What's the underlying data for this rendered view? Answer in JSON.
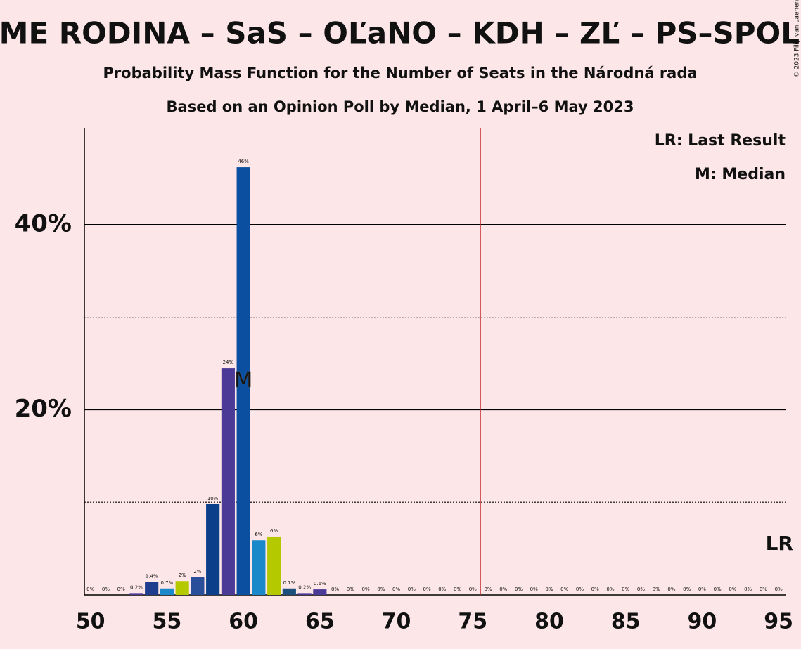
{
  "chart_data": {
    "type": "bar",
    "title": "SME RODINA – SaS – OĽaNO – KDH – ZĽ – PS–SPOLU",
    "subtitle": "Probability Mass Function for the Number of Seats in the Národná rada",
    "subtitle2": "Based on an Opinion Poll by Median, 1 April–6 May 2023",
    "copyright": "© 2023 Filip van Laenen",
    "legend": [
      "LR: Last Result",
      "M: Median"
    ],
    "median_marker": "M",
    "median": 60,
    "last_result_marker": "LR",
    "majority_line": 75.5,
    "x": [
      50,
      51,
      52,
      53,
      54,
      55,
      56,
      57,
      58,
      59,
      60,
      61,
      62,
      63,
      64,
      65,
      66,
      67,
      68,
      69,
      70,
      71,
      72,
      73,
      74,
      75,
      76,
      77,
      78,
      79,
      80,
      81,
      82,
      83,
      84,
      85,
      86,
      87,
      88,
      89,
      90,
      91,
      92,
      93,
      94,
      95
    ],
    "values": [
      0,
      0,
      0,
      0.2,
      1.4,
      0.7,
      1.5,
      1.9,
      9.8,
      24.5,
      46.2,
      5.9,
      6.3,
      0.7,
      0.2,
      0.6,
      0,
      0,
      0,
      0,
      0,
      0,
      0,
      0,
      0,
      0,
      0,
      0,
      0,
      0,
      0,
      0,
      0,
      0,
      0,
      0,
      0,
      0,
      0,
      0,
      0,
      0,
      0,
      0,
      0,
      0
    ],
    "value_labels": [
      "0%",
      "0%",
      "0%",
      "0.2%",
      "1.4%",
      "0.7%",
      "2%",
      "2%",
      "10%",
      "24%",
      "46%",
      "6%",
      "6%",
      "0.7%",
      "0.2%",
      "0.6%",
      "0%",
      "0%",
      "0%",
      "0%",
      "0%",
      "0%",
      "0%",
      "0%",
      "0%",
      "0%",
      "0%",
      "0%",
      "0%",
      "0%",
      "0%",
      "0%",
      "0%",
      "0%",
      "0%",
      "0%",
      "0%",
      "0%",
      "0%",
      "0%",
      "0%",
      "0%",
      "0%",
      "0%",
      "0%",
      "0%"
    ],
    "colors": [
      "#1f3d8f",
      "#1f3d8f",
      "#1f3d8f",
      "#4b3a96",
      "#1f3d8f",
      "#1a88c9",
      "#b5c900",
      "#2a4f9a",
      "#0b3f8a",
      "#4b3a96",
      "#0a4fa0",
      "#1a88c9",
      "#b5c900",
      "#1d4f7d",
      "#4b3a96",
      "#4b3a96",
      "#1f3d8f",
      "#1f3d8f",
      "#1f3d8f",
      "#1f3d8f",
      "#1f3d8f",
      "#1f3d8f",
      "#1f3d8f",
      "#1f3d8f",
      "#1f3d8f",
      "#1f3d8f",
      "#1f3d8f",
      "#1f3d8f",
      "#1f3d8f",
      "#1f3d8f",
      "#1f3d8f",
      "#1f3d8f",
      "#1f3d8f",
      "#1f3d8f",
      "#1f3d8f",
      "#1f3d8f",
      "#1f3d8f",
      "#1f3d8f",
      "#1f3d8f",
      "#1f3d8f",
      "#1f3d8f",
      "#1f3d8f",
      "#1f3d8f",
      "#1f3d8f",
      "#1f3d8f",
      "#1f3d8f"
    ],
    "xlim": [
      49.6,
      95.5
    ],
    "xticks": [
      50,
      55,
      60,
      65,
      70,
      75,
      80,
      85,
      90,
      95
    ],
    "ylim": [
      0,
      50
    ],
    "yticks": [
      {
        "value": 20,
        "label": "20%"
      },
      {
        "value": 40,
        "label": "40%"
      }
    ],
    "dotted_gridlines": [
      10,
      30
    ]
  }
}
